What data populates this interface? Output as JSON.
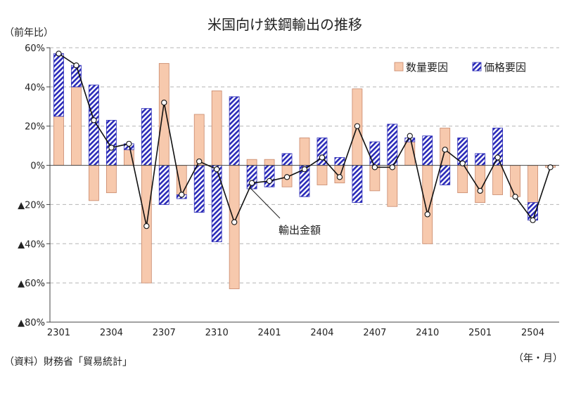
{
  "chart_data": {
    "type": "bar",
    "title": "米国向け鉄鋼輸出の推移",
    "ylabel": "（前年比）",
    "xlabel": "（年・月）",
    "source": "（資料）財務省「貿易統計」",
    "ylim": [
      -80,
      60
    ],
    "y_ticks": [
      {
        "value": 60,
        "label": "60%"
      },
      {
        "value": 40,
        "label": "40%"
      },
      {
        "value": 20,
        "label": "20%"
      },
      {
        "value": 0,
        "label": "0%"
      },
      {
        "value": -20,
        "label": "▲20%"
      },
      {
        "value": -40,
        "label": "▲40%"
      },
      {
        "value": -60,
        "label": "▲60%"
      },
      {
        "value": -80,
        "label": "▲80%"
      }
    ],
    "categories": [
      "2301",
      "2302",
      "2303",
      "2304",
      "2305",
      "2306",
      "2307",
      "2308",
      "2309",
      "2310",
      "2311",
      "2312",
      "2401",
      "2402",
      "2403",
      "2404",
      "2405",
      "2406",
      "2407",
      "2408",
      "2409",
      "2410",
      "2411",
      "2412",
      "2501",
      "2502",
      "2503",
      "2504",
      "2505"
    ],
    "x_tick_labels": [
      "2301",
      "",
      "",
      "2304",
      "",
      "",
      "2307",
      "",
      "",
      "2310",
      "",
      "",
      "2401",
      "",
      "",
      "2404",
      "",
      "",
      "2407",
      "",
      "",
      "2410",
      "",
      "",
      "2501",
      "",
      "",
      "2504",
      ""
    ],
    "series": [
      {
        "name": "数量要因",
        "stack": "positive/negative",
        "color": "#f7c9ad",
        "values": [
          25,
          40,
          -18,
          -14,
          8,
          -60,
          52,
          -15,
          26,
          38,
          -63,
          3,
          3,
          -11,
          14,
          -10,
          -9,
          39,
          -13,
          -21,
          12,
          -40,
          19,
          -14,
          -19,
          -15,
          -16,
          -19,
          -1
        ]
      },
      {
        "name": "価格要因",
        "color": "#2a2ab8",
        "pattern": "diagonal-hatch",
        "values": [
          32,
          11,
          41,
          23,
          3,
          29,
          -20,
          -2,
          -24,
          -39,
          35,
          -12,
          -11,
          6,
          -16,
          14,
          4,
          -19,
          12,
          21,
          2,
          15,
          -10,
          14,
          6,
          19,
          0,
          -9,
          0
        ]
      },
      {
        "name": "輸出金額",
        "type": "line",
        "values": [
          57,
          51,
          23,
          9,
          11,
          -31,
          32,
          -15,
          2,
          -2,
          -29,
          -9,
          -8,
          -6,
          -2,
          4,
          -6,
          20,
          -1,
          -1,
          15,
          -25,
          8,
          1,
          -13,
          4,
          -16,
          -28,
          -1
        ]
      }
    ],
    "annotations": [
      {
        "text": "輸出金額",
        "points_to": "2401"
      }
    ],
    "legend_position": "top-right",
    "grid": "horizontal-dashed"
  }
}
